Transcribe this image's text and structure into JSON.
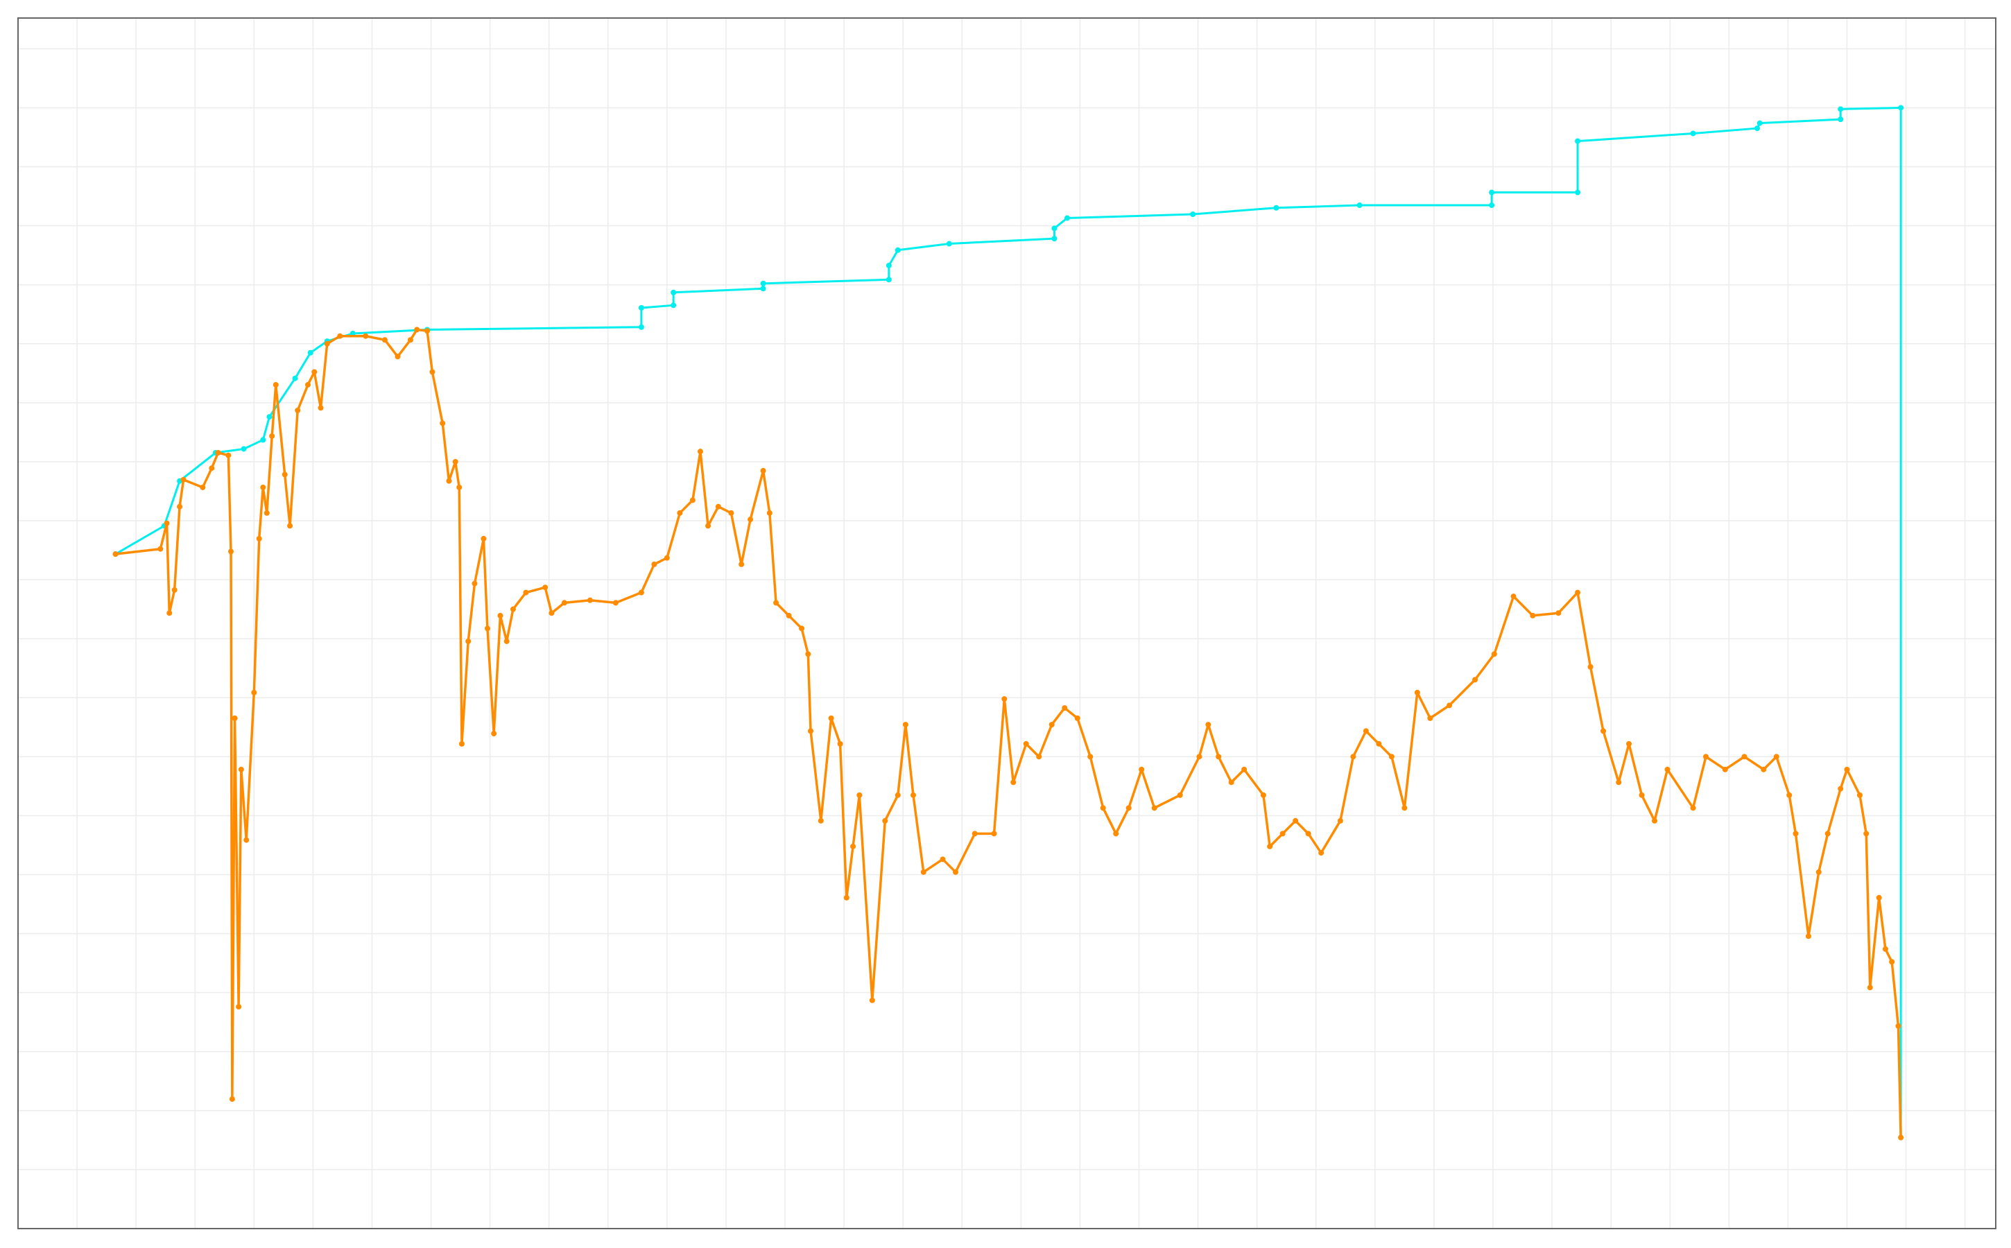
{
  "chart_data": {
    "type": "line",
    "grid": true,
    "xlim": [
      0,
      1542
    ],
    "ylim": [
      0,
      944
    ],
    "xticks": [
      0,
      46,
      92,
      138,
      184,
      230,
      276,
      322,
      368,
      414,
      460,
      506,
      552,
      598,
      644,
      690,
      736,
      782,
      828,
      874,
      920,
      966,
      1012,
      1058,
      1104,
      1150,
      1196,
      1242,
      1288,
      1334,
      1380,
      1426,
      1472,
      1518
    ],
    "yticks": [
      0,
      46,
      92,
      138,
      184,
      230,
      276,
      322,
      368,
      414,
      460,
      506,
      552,
      598,
      644,
      690,
      736,
      782,
      828,
      874,
      920
    ],
    "series": [
      {
        "color": "#00eeee",
        "x": [
          76,
          114,
          126,
          154,
          176,
          191,
          196,
          216,
          228,
          241,
          261,
          319,
          486,
          486,
          511,
          511,
          581,
          581,
          679,
          679,
          686,
          726,
          808,
          808,
          818,
          916,
          981,
          1046,
          1149,
          1149,
          1216,
          1216,
          1306,
          1356,
          1358,
          1421,
          1421,
          1468,
          1468
        ],
        "values": [
          526,
          548,
          583,
          605,
          608,
          615,
          633,
          663,
          683,
          692,
          698,
          701,
          703,
          718,
          720,
          730,
          733,
          737,
          740,
          751,
          763,
          768,
          772,
          780,
          788,
          791,
          796,
          798,
          798,
          808,
          808,
          848,
          854,
          858,
          862,
          865,
          873,
          874,
          71
        ]
      },
      {
        "color": "#ff8c00",
        "x": [
          76,
          111,
          116,
          118,
          122,
          126,
          129,
          144,
          151,
          156,
          164,
          166,
          167,
          169,
          172,
          174,
          178,
          184,
          188,
          191,
          194,
          198,
          201,
          208,
          212,
          218,
          226,
          231,
          236,
          241,
          251,
          271,
          286,
          296,
          306,
          311,
          319,
          323,
          331,
          336,
          341,
          344,
          346,
          351,
          356,
          363,
          366,
          371,
          376,
          381,
          386,
          396,
          411,
          416,
          426,
          446,
          466,
          486,
          496,
          506,
          516,
          526,
          532,
          538,
          546,
          556,
          564,
          571,
          581,
          586,
          591,
          601,
          611,
          616,
          618,
          626,
          634,
          641,
          646,
          651,
          656,
          666,
          676,
          686,
          692,
          698,
          706,
          721,
          731,
          746,
          761,
          769,
          776,
          786,
          796,
          806,
          816,
          826,
          836,
          846,
          856,
          866,
          876,
          886,
          906,
          921,
          928,
          936,
          946,
          956,
          971,
          976,
          986,
          996,
          1006,
          1016,
          1031,
          1041,
          1051,
          1061,
          1071,
          1081,
          1091,
          1101,
          1116,
          1136,
          1151,
          1166,
          1181,
          1201,
          1216,
          1226,
          1236,
          1248,
          1256,
          1266,
          1276,
          1286,
          1306,
          1316,
          1331,
          1346,
          1361,
          1371,
          1381,
          1386,
          1396,
          1404,
          1411,
          1421,
          1426,
          1436,
          1441,
          1444,
          1451,
          1456,
          1461,
          1466,
          1468
        ],
        "values": [
          526,
          530,
          550,
          480,
          498,
          563,
          584,
          578,
          593,
          605,
          603,
          528,
          101,
          398,
          173,
          358,
          303,
          418,
          538,
          578,
          558,
          618,
          658,
          588,
          548,
          638,
          658,
          668,
          640,
          690,
          696,
          696,
          693,
          680,
          693,
          701,
          700,
          668,
          628,
          583,
          598,
          578,
          378,
          458,
          503,
          538,
          468,
          386,
          478,
          458,
          483,
          496,
          500,
          480,
          488,
          490,
          488,
          496,
          518,
          523,
          558,
          568,
          606,
          548,
          563,
          558,
          518,
          553,
          591,
          558,
          488,
          478,
          468,
          448,
          388,
          318,
          398,
          378,
          258,
          298,
          338,
          178,
          318,
          338,
          393,
          338,
          278,
          288,
          278,
          308,
          308,
          413,
          348,
          378,
          368,
          393,
          406,
          398,
          368,
          328,
          308,
          328,
          358,
          328,
          338,
          368,
          393,
          368,
          348,
          358,
          338,
          298,
          308,
          318,
          308,
          293,
          318,
          368,
          388,
          378,
          368,
          328,
          418,
          398,
          408,
          428,
          448,
          493,
          478,
          480,
          496,
          438,
          388,
          348,
          378,
          338,
          318,
          358,
          328,
          368,
          358,
          368,
          358,
          368,
          338,
          308,
          228,
          278,
          308,
          343,
          358,
          338,
          308,
          188,
          258,
          218,
          208,
          158,
          71
        ]
      }
    ]
  }
}
